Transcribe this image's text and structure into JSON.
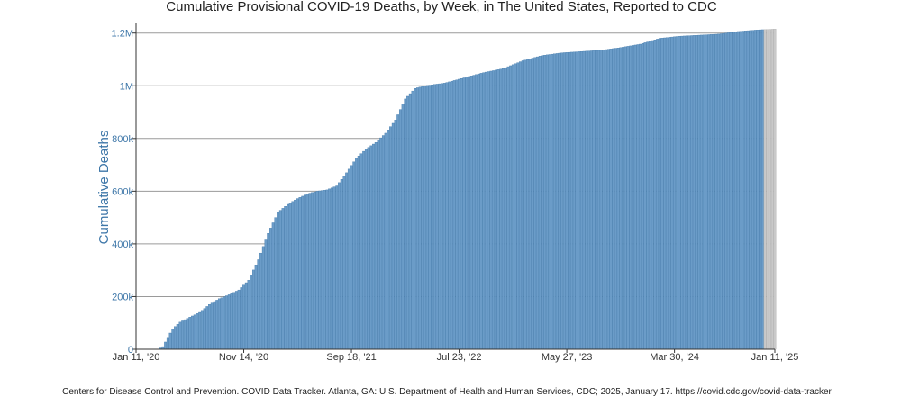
{
  "chart_data": {
    "type": "bar",
    "title": "Cumulative Provisional COVID-19 Deaths, by Week, in The United States, Reported to CDC",
    "ylabel": "Cumulative Deaths",
    "xlabel": "",
    "ylim": [
      0,
      1240000
    ],
    "y_ticks": [
      {
        "value": 0,
        "label": "0"
      },
      {
        "value": 200000,
        "label": "200k"
      },
      {
        "value": 400000,
        "label": "400k"
      },
      {
        "value": 600000,
        "label": "600k"
      },
      {
        "value": 800000,
        "label": "800k"
      },
      {
        "value": 1000000,
        "label": "1M"
      },
      {
        "value": 1200000,
        "label": "1.2M"
      }
    ],
    "x_ticks": [
      {
        "date": "2020-01-11",
        "label": "Jan 11, '20"
      },
      {
        "date": "2020-11-14",
        "label": "Nov 14, '20"
      },
      {
        "date": "2021-09-18",
        "label": "Sep 18, '21"
      },
      {
        "date": "2022-07-23",
        "label": "Jul 23, '22"
      },
      {
        "date": "2023-05-27",
        "label": "May 27, '23"
      },
      {
        "date": "2024-03-30",
        "label": "Mar 30, '24"
      },
      {
        "date": "2025-01-11",
        "label": "Jan 11, '25"
      }
    ],
    "grid": true,
    "bar_color": "#6b9cc8",
    "bar_edge_color": "#3d76a8",
    "recent_bar_color": "#c9c9c9",
    "series": [
      {
        "anchors": [
          {
            "date": "2020-01-11",
            "value": 0
          },
          {
            "date": "2020-03-14",
            "value": 0
          },
          {
            "date": "2020-03-28",
            "value": 10000
          },
          {
            "date": "2020-04-11",
            "value": 45000
          },
          {
            "date": "2020-04-25",
            "value": 78000
          },
          {
            "date": "2020-05-16",
            "value": 103000
          },
          {
            "date": "2020-06-13",
            "value": 122000
          },
          {
            "date": "2020-07-11",
            "value": 140000
          },
          {
            "date": "2020-08-08",
            "value": 170000
          },
          {
            "date": "2020-09-05",
            "value": 192000
          },
          {
            "date": "2020-10-03",
            "value": 207000
          },
          {
            "date": "2020-10-31",
            "value": 225000
          },
          {
            "date": "2020-11-28",
            "value": 262000
          },
          {
            "date": "2020-12-26",
            "value": 340000
          },
          {
            "date": "2021-01-23",
            "value": 440000
          },
          {
            "date": "2021-02-20",
            "value": 520000
          },
          {
            "date": "2021-03-20",
            "value": 550000
          },
          {
            "date": "2021-04-17",
            "value": 572000
          },
          {
            "date": "2021-05-15",
            "value": 590000
          },
          {
            "date": "2021-06-12",
            "value": 600000
          },
          {
            "date": "2021-07-10",
            "value": 605000
          },
          {
            "date": "2021-08-07",
            "value": 620000
          },
          {
            "date": "2021-09-04",
            "value": 670000
          },
          {
            "date": "2021-10-02",
            "value": 725000
          },
          {
            "date": "2021-10-30",
            "value": 760000
          },
          {
            "date": "2021-11-27",
            "value": 785000
          },
          {
            "date": "2021-12-25",
            "value": 820000
          },
          {
            "date": "2022-01-22",
            "value": 870000
          },
          {
            "date": "2022-02-19",
            "value": 950000
          },
          {
            "date": "2022-03-19",
            "value": 990000
          },
          {
            "date": "2022-04-16",
            "value": 1000000
          },
          {
            "date": "2022-06-11",
            "value": 1010000
          },
          {
            "date": "2022-08-06",
            "value": 1030000
          },
          {
            "date": "2022-10-01",
            "value": 1050000
          },
          {
            "date": "2022-11-26",
            "value": 1065000
          },
          {
            "date": "2023-01-21",
            "value": 1095000
          },
          {
            "date": "2023-03-18",
            "value": 1115000
          },
          {
            "date": "2023-05-13",
            "value": 1125000
          },
          {
            "date": "2023-07-08",
            "value": 1130000
          },
          {
            "date": "2023-09-02",
            "value": 1135000
          },
          {
            "date": "2023-10-28",
            "value": 1145000
          },
          {
            "date": "2023-12-23",
            "value": 1158000
          },
          {
            "date": "2024-02-17",
            "value": 1180000
          },
          {
            "date": "2024-04-13",
            "value": 1188000
          },
          {
            "date": "2024-06-08",
            "value": 1192000
          },
          {
            "date": "2024-08-03",
            "value": 1196000
          },
          {
            "date": "2024-09-28",
            "value": 1206000
          },
          {
            "date": "2024-11-23",
            "value": 1212000
          },
          {
            "date": "2025-01-11",
            "value": 1215000
          }
        ],
        "recent_from": "2024-12-14"
      }
    ]
  },
  "caption": "Centers for Disease Control and Prevention. COVID Data Tracker. Atlanta, GA: U.S. Department of Health and Human Services, CDC; 2025, January 17. https://covid.cdc.gov/covid-data-tracker"
}
